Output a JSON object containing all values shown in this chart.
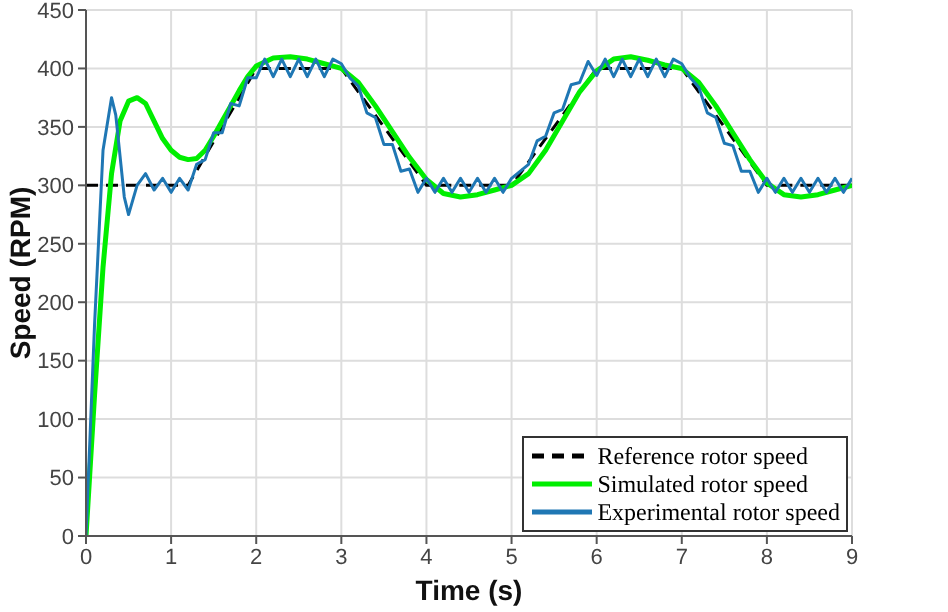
{
  "chart_data": {
    "type": "line",
    "xlabel": "Time (s)",
    "ylabel": "Speed (RPM)",
    "xlim": [
      0,
      9
    ],
    "ylim": [
      0,
      450
    ],
    "xticks": [
      0,
      1,
      2,
      3,
      4,
      5,
      6,
      7,
      8,
      9
    ],
    "yticks": [
      0,
      50,
      100,
      150,
      200,
      250,
      300,
      350,
      400,
      450
    ],
    "grid": true,
    "legend": "bottom right",
    "series": [
      {
        "name": "Reference rotor speed",
        "color": "#000000",
        "line_style": "dashed",
        "x": [
          0,
          1.2,
          2,
          3,
          4,
          5,
          6,
          7,
          8,
          9
        ],
        "values": [
          300,
          300,
          400,
          400,
          300,
          300,
          400,
          400,
          300,
          300
        ]
      },
      {
        "name": "Simulated rotor speed",
        "color": "#00ee00",
        "line_style": "solid",
        "x": [
          0,
          0.1,
          0.2,
          0.3,
          0.4,
          0.5,
          0.6,
          0.7,
          0.8,
          0.9,
          1.0,
          1.1,
          1.2,
          1.3,
          1.4,
          1.5,
          1.6,
          1.7,
          1.8,
          1.9,
          2.0,
          2.2,
          2.4,
          2.6,
          2.8,
          3.0,
          3.2,
          3.4,
          3.6,
          3.8,
          4.0,
          4.2,
          4.4,
          4.6,
          4.8,
          5.0,
          5.2,
          5.4,
          5.6,
          5.8,
          6.0,
          6.2,
          6.4,
          6.6,
          6.8,
          7.0,
          7.2,
          7.4,
          7.6,
          7.8,
          8.0,
          8.2,
          8.4,
          8.6,
          8.8,
          9.0
        ],
        "values": [
          0,
          120,
          230,
          310,
          355,
          372,
          375,
          370,
          355,
          340,
          330,
          324,
          322,
          323,
          330,
          342,
          355,
          368,
          381,
          393,
          402,
          409,
          410,
          408,
          404,
          400,
          388,
          368,
          346,
          324,
          305,
          293,
          290,
          292,
          296,
          300,
          310,
          330,
          355,
          380,
          398,
          408,
          410,
          407,
          403,
          400,
          388,
          368,
          345,
          322,
          302,
          292,
          290,
          292,
          296,
          300
        ]
      },
      {
        "name": "Experimental rotor speed",
        "color": "#1f77b4",
        "line_style": "solid",
        "x": [
          0,
          0.1,
          0.2,
          0.3,
          0.35,
          0.45,
          0.5,
          0.6,
          0.7,
          0.8,
          0.9,
          1.0,
          1.1,
          1.2,
          1.3,
          1.4,
          1.5,
          1.6,
          1.7,
          1.8,
          1.9,
          2.0,
          2.1,
          2.2,
          2.3,
          2.4,
          2.5,
          2.6,
          2.7,
          2.8,
          2.9,
          3.0,
          3.1,
          3.2,
          3.3,
          3.4,
          3.5,
          3.6,
          3.7,
          3.8,
          3.9,
          4.0,
          4.1,
          4.2,
          4.3,
          4.4,
          4.5,
          4.6,
          4.7,
          4.8,
          4.9,
          5.0,
          5.1,
          5.2,
          5.3,
          5.4,
          5.5,
          5.6,
          5.7,
          5.8,
          5.9,
          6.0,
          6.1,
          6.2,
          6.3,
          6.4,
          6.5,
          6.6,
          6.7,
          6.8,
          6.9,
          7.0,
          7.1,
          7.2,
          7.3,
          7.4,
          7.5,
          7.6,
          7.7,
          7.8,
          7.9,
          8.0,
          8.1,
          8.2,
          8.3,
          8.4,
          8.5,
          8.6,
          8.7,
          8.8,
          8.9,
          9.0
        ],
        "values": [
          0,
          180,
          330,
          375,
          360,
          290,
          275,
          300,
          310,
          296,
          306,
          294,
          306,
          296,
          318,
          322,
          345,
          345,
          370,
          368,
          392,
          392,
          408,
          393,
          408,
          393,
          408,
          393,
          408,
          393,
          408,
          404,
          392,
          385,
          362,
          358,
          335,
          335,
          312,
          314,
          294,
          306,
          294,
          306,
          294,
          306,
          294,
          306,
          294,
          306,
          294,
          306,
          312,
          318,
          338,
          342,
          362,
          365,
          386,
          388,
          406,
          394,
          408,
          393,
          408,
          393,
          408,
          393,
          408,
          393,
          408,
          404,
          392,
          384,
          362,
          358,
          336,
          334,
          312,
          312,
          294,
          306,
          294,
          306,
          294,
          306,
          294,
          306,
          294,
          306,
          294,
          306
        ]
      }
    ]
  }
}
